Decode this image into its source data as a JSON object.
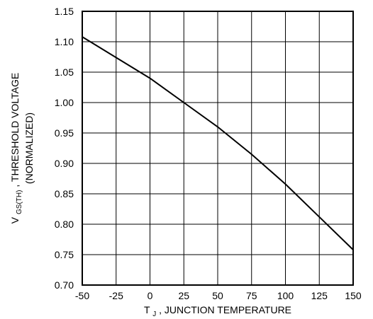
{
  "chart_data": {
    "type": "line",
    "xlabel": {
      "prefix": "T",
      "subscript": "J",
      "suffix": ", JUNCTION TEMPERATURE"
    },
    "ylabel": {
      "prefix": "V",
      "subscript": "GS(TH)",
      "line1_suffix": ",  THRESHOLD VOLTAGE",
      "line2": "(NORMALIZED)"
    },
    "xlim": [
      -50,
      150
    ],
    "ylim": [
      0.7,
      1.15
    ],
    "x_ticks": [
      -50,
      -25,
      0,
      25,
      50,
      75,
      100,
      125,
      150
    ],
    "x_tick_labels": [
      "-50",
      "-25",
      "0",
      "25",
      "50",
      "75",
      "100",
      "125",
      "150"
    ],
    "y_ticks": [
      0.7,
      0.75,
      0.8,
      0.85,
      0.9,
      0.95,
      1.0,
      1.05,
      1.1,
      1.15
    ],
    "y_tick_labels": [
      "0.70",
      "0.75",
      "0.80",
      "0.85",
      "0.90",
      "0.95",
      "1.00",
      "1.05",
      "1.10",
      "1.15"
    ],
    "grid": true,
    "series": [
      {
        "color": "#000000",
        "x": [
          -50,
          -25,
          0,
          25,
          50,
          75,
          100,
          125,
          150
        ],
        "y": [
          1.108,
          1.074,
          1.04,
          1.0,
          0.96,
          0.915,
          0.866,
          0.812,
          0.758
        ]
      }
    ]
  }
}
